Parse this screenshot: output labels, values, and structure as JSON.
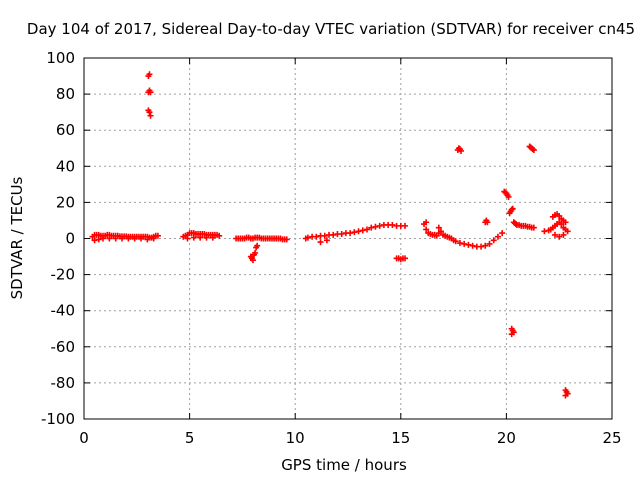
{
  "chart_data": {
    "type": "scatter",
    "title": "Day 104 of 2017, Sidereal Day-to-day VTEC variation (SDTVAR) for receiver cn45",
    "xlabel": "GPS time / hours",
    "ylabel": "SDTVAR / TECUs",
    "xlim": [
      0,
      25
    ],
    "ylim": [
      -100,
      100
    ],
    "xticks": [
      0,
      5,
      10,
      15,
      20,
      25
    ],
    "yticks": [
      -100,
      -80,
      -60,
      -40,
      -20,
      0,
      20,
      40,
      60,
      80,
      100
    ],
    "xtick_labels": [
      "0",
      "5",
      "10",
      "15",
      "20",
      "25"
    ],
    "ytick_labels": [
      "-100",
      "-80",
      "-60",
      "-40",
      "-20",
      "0",
      "20",
      "40",
      "60",
      "80",
      "100"
    ],
    "grid": true,
    "marker": "+",
    "color": "#ff0000",
    "series": [
      {
        "name": "SDTVAR",
        "x": [
          0.4,
          0.5,
          0.6,
          0.7,
          0.8,
          0.9,
          1.0,
          1.1,
          1.2,
          1.3,
          1.4,
          1.5,
          1.6,
          1.7,
          1.8,
          1.9,
          2.0,
          2.1,
          2.2,
          2.3,
          2.4,
          2.5,
          2.6,
          2.7,
          2.8,
          2.9,
          3.0,
          3.1,
          3.2,
          3.3,
          3.4,
          3.5,
          0.5,
          0.7,
          0.9,
          1.2,
          1.5,
          1.8,
          2.1,
          2.4,
          2.7,
          3.0,
          3.3,
          3.05,
          3.1,
          3.15,
          3.05,
          3.1,
          3.15,
          3.05,
          3.1,
          4.7,
          4.8,
          4.9,
          5.0,
          5.1,
          5.2,
          5.3,
          5.4,
          5.5,
          5.6,
          5.7,
          5.8,
          5.9,
          6.0,
          6.1,
          6.2,
          6.3,
          6.4,
          4.9,
          5.2,
          5.5,
          5.8,
          6.1,
          7.2,
          7.3,
          7.4,
          7.5,
          7.6,
          7.7,
          7.8,
          7.9,
          8.0,
          8.1,
          8.2,
          8.3,
          8.4,
          8.5,
          8.6,
          8.7,
          8.8,
          8.9,
          9.0,
          9.1,
          9.2,
          9.3,
          9.4,
          9.5,
          9.6,
          7.9,
          7.95,
          8.0,
          8.05,
          8.1,
          8.15,
          8.2,
          10.5,
          10.6,
          10.8,
          11.0,
          11.2,
          11.4,
          11.6,
          11.8,
          12.0,
          12.2,
          12.4,
          12.6,
          12.8,
          13.0,
          13.2,
          13.4,
          13.6,
          13.8,
          14.0,
          14.2,
          14.4,
          14.6,
          14.8,
          15.0,
          15.2,
          11.2,
          11.5,
          14.8,
          14.9,
          15.0,
          15.1,
          15.2,
          16.1,
          16.2,
          16.3,
          16.4,
          16.5,
          16.6,
          16.7,
          16.8,
          16.9,
          17.0,
          17.1,
          17.2,
          17.3,
          17.4,
          17.5,
          17.6,
          17.8,
          18.0,
          18.2,
          18.4,
          18.6,
          18.8,
          19.0,
          19.2,
          19.4,
          19.6,
          19.8,
          16.2,
          16.8,
          17.7,
          17.75,
          17.8,
          17.85,
          19.0,
          19.05,
          19.1,
          19.9,
          19.95,
          20.0,
          20.05,
          20.1,
          20.15,
          20.2,
          20.25,
          20.3,
          20.35,
          20.4,
          20.45,
          20.5,
          20.6,
          20.7,
          20.8,
          20.9,
          21.0,
          21.1,
          21.2,
          21.3,
          20.25,
          20.3,
          20.35,
          20.25,
          21.1,
          21.15,
          21.2,
          21.25,
          21.3,
          21.8,
          22.0,
          22.1,
          22.2,
          22.3,
          22.4,
          22.5,
          22.6,
          22.7,
          22.8,
          22.9,
          22.2,
          22.3,
          22.4,
          22.5,
          22.6,
          22.7,
          22.8,
          22.3,
          22.5,
          22.7,
          22.8,
          22.85,
          22.9,
          22.8
        ],
        "y": [
          1,
          2,
          2,
          2,
          1.5,
          1.5,
          1.5,
          2,
          2,
          1.5,
          1.5,
          1.5,
          1.5,
          1.2,
          1.2,
          1.2,
          1.2,
          1,
          1,
          1,
          1,
          1,
          1,
          1,
          1,
          1,
          1,
          0.5,
          0.5,
          1,
          1.5,
          1.5,
          -1,
          -0.5,
          0,
          0,
          0,
          0,
          0,
          0,
          0,
          -0.5,
          0,
          81,
          82,
          81,
          71,
          70,
          68,
          90,
          91,
          1,
          1.5,
          2,
          3,
          3,
          3,
          2.5,
          2.5,
          2.5,
          2.5,
          2.5,
          2,
          2,
          2,
          2,
          2,
          2,
          1.5,
          0,
          0.5,
          0.5,
          0.5,
          0.5,
          0,
          0,
          0,
          0,
          0,
          0.5,
          0.5,
          0,
          0,
          0.5,
          0.5,
          0.5,
          0,
          0,
          0,
          0,
          0,
          0,
          0,
          0,
          0,
          0,
          -0.5,
          -0.5,
          -0.5,
          -10,
          -11,
          -12,
          -9,
          -8,
          -5,
          -4,
          0,
          0.5,
          1,
          1,
          1.5,
          1.5,
          2,
          2,
          2.5,
          2.5,
          3,
          3,
          3.5,
          4,
          4.5,
          5,
          6,
          6.5,
          7,
          7.5,
          7.5,
          7.5,
          7,
          7,
          7,
          -2,
          -1,
          -11,
          -11,
          -11.5,
          -11,
          -11,
          8,
          5,
          3,
          2.5,
          2,
          2,
          1.5,
          3,
          4,
          2,
          1.5,
          1,
          0.5,
          0,
          -1,
          -1.5,
          -2.5,
          -3,
          -3.5,
          -4,
          -4.5,
          -4.5,
          -4,
          -3,
          -1,
          1,
          3,
          9,
          6,
          49,
          50,
          49.5,
          48.5,
          9,
          10,
          9,
          26,
          25.5,
          25,
          24,
          23,
          14,
          15,
          16,
          16.5,
          9,
          8.5,
          8,
          7.5,
          7.5,
          7,
          7,
          7,
          6.5,
          6.5,
          6,
          6,
          -50,
          -51,
          -52,
          -53,
          51,
          50.5,
          50,
          49.5,
          49,
          4,
          4.5,
          5,
          6,
          7,
          8,
          9,
          8,
          6,
          5,
          4,
          12,
          13,
          13.5,
          12.5,
          11,
          10,
          9,
          2,
          1,
          2,
          -84,
          -85,
          -86,
          -87
        ]
      }
    ]
  }
}
